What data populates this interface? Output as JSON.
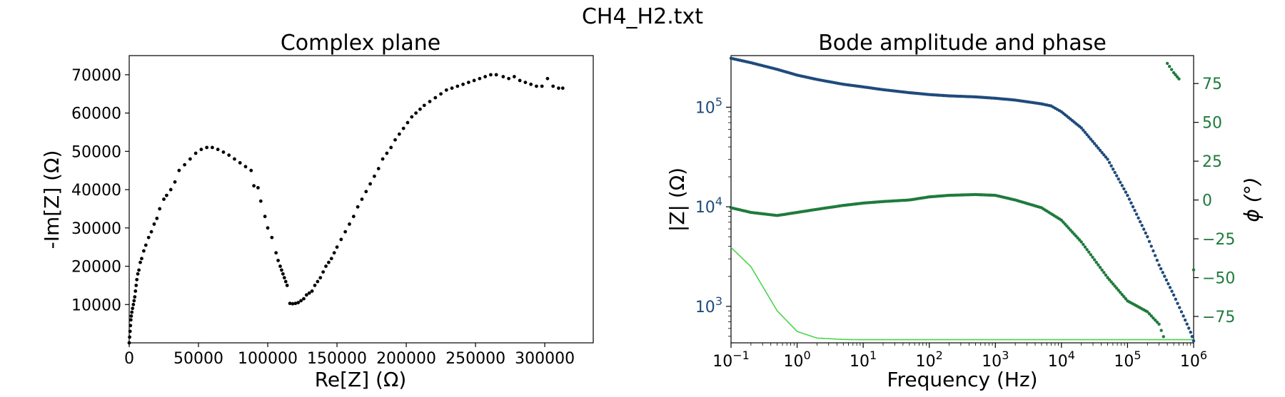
{
  "figure": {
    "title": "CH4_H2.txt"
  },
  "chart_data": [
    {
      "type": "scatter",
      "title": "Complex plane",
      "xlabel": "Re[Z] (Ω)",
      "ylabel": "-Im[Z] (Ω)",
      "xlim": [
        0,
        335000
      ],
      "ylim": [
        0,
        75000
      ],
      "xticks": [
        0,
        50000,
        100000,
        150000,
        200000,
        250000,
        300000
      ],
      "xtick_labels": [
        "0",
        "50000",
        "100000",
        "150000",
        "200000",
        "250000",
        "300000"
      ],
      "yticks": [
        10000,
        20000,
        30000,
        40000,
        50000,
        60000,
        70000
      ],
      "ytick_labels": [
        "10000",
        "20000",
        "30000",
        "40000",
        "50000",
        "60000",
        "70000"
      ],
      "grid": false,
      "marker_color": "#000000",
      "series": [
        {
          "points": [
            [
              0,
              0
            ],
            [
              300,
              1500
            ],
            [
              600,
              3000
            ],
            [
              900,
              4500
            ],
            [
              1200,
              6000
            ],
            [
              1500,
              7000
            ],
            [
              1900,
              8000
            ],
            [
              2400,
              9000
            ],
            [
              3000,
              10000
            ],
            [
              3500,
              11000
            ],
            [
              4000,
              12000
            ],
            [
              4500,
              13500
            ],
            [
              5000,
              15000
            ],
            [
              5500,
              16500
            ],
            [
              6200,
              18000
            ],
            [
              7000,
              19000
            ],
            [
              8000,
              21000
            ],
            [
              9000,
              22000
            ],
            [
              10500,
              24000
            ],
            [
              12000,
              25500
            ],
            [
              14000,
              27500
            ],
            [
              16000,
              29000
            ],
            [
              18000,
              31000
            ],
            [
              20000,
              32500
            ],
            [
              22000,
              35000
            ],
            [
              25000,
              37500
            ],
            [
              27000,
              38500
            ],
            [
              30000,
              40000
            ],
            [
              33000,
              42000
            ],
            [
              36000,
              45000
            ],
            [
              40000,
              46500
            ],
            [
              44000,
              48000
            ],
            [
              48000,
              49500
            ],
            [
              52000,
              50500
            ],
            [
              56000,
              51000
            ],
            [
              60000,
              51000
            ],
            [
              64000,
              50500
            ],
            [
              68000,
              49800
            ],
            [
              72000,
              49000
            ],
            [
              76000,
              48000
            ],
            [
              80000,
              47000
            ],
            [
              84000,
              46000
            ],
            [
              88000,
              45000
            ],
            [
              90000,
              41000
            ],
            [
              93000,
              40500
            ],
            [
              95000,
              37000
            ],
            [
              98000,
              33000
            ],
            [
              100000,
              30000
            ],
            [
              103000,
              27500
            ],
            [
              106000,
              23500
            ],
            [
              107500,
              21500
            ],
            [
              109000,
              20000
            ],
            [
              110000,
              19000
            ],
            [
              111000,
              18000
            ],
            [
              112000,
              17000
            ],
            [
              113000,
              16000
            ],
            [
              114000,
              15000
            ],
            [
              116000,
              10300
            ],
            [
              118000,
              10200
            ],
            [
              120000,
              10300
            ],
            [
              122000,
              10500
            ],
            [
              124000,
              11000
            ],
            [
              126000,
              11500
            ],
            [
              128000,
              12500
            ],
            [
              130000,
              13000
            ],
            [
              132000,
              13500
            ],
            [
              134000,
              15000
            ],
            [
              136000,
              16000
            ],
            [
              138000,
              17000
            ],
            [
              140000,
              18500
            ],
            [
              142000,
              20000
            ],
            [
              144000,
              21000
            ],
            [
              146000,
              22000
            ],
            [
              148000,
              23500
            ],
            [
              150000,
              25000
            ],
            [
              153000,
              27000
            ],
            [
              156000,
              29000
            ],
            [
              159000,
              31000
            ],
            [
              162000,
              33000
            ],
            [
              165000,
              35500
            ],
            [
              168000,
              37500
            ],
            [
              171000,
              39500
            ],
            [
              174000,
              41500
            ],
            [
              177000,
              43500
            ],
            [
              180000,
              45500
            ],
            [
              183000,
              48000
            ],
            [
              186000,
              49500
            ],
            [
              189000,
              51000
            ],
            [
              192000,
              53000
            ],
            [
              195000,
              54500
            ],
            [
              198000,
              56000
            ],
            [
              201000,
              57500
            ],
            [
              204000,
              59000
            ],
            [
              207000,
              60000
            ],
            [
              210000,
              61000
            ],
            [
              213000,
              62000
            ],
            [
              217000,
              63000
            ],
            [
              221000,
              64000
            ],
            [
              225000,
              65000
            ],
            [
              229000,
              66000
            ],
            [
              233000,
              66500
            ],
            [
              237000,
              67000
            ],
            [
              241000,
              67500
            ],
            [
              245000,
              68000
            ],
            [
              249000,
              68500
            ],
            [
              253000,
              69000
            ],
            [
              257000,
              69500
            ],
            [
              261000,
              70000
            ],
            [
              265000,
              70000
            ],
            [
              270000,
              69500
            ],
            [
              274000,
              69000
            ],
            [
              278000,
              69500
            ],
            [
              282000,
              68500
            ],
            [
              286000,
              68000
            ],
            [
              290000,
              67500
            ],
            [
              294000,
              67000
            ],
            [
              298000,
              67000
            ],
            [
              302000,
              69000
            ],
            [
              306000,
              67000
            ],
            [
              310000,
              66500
            ],
            [
              313000,
              66500
            ]
          ]
        }
      ]
    },
    {
      "type": "scatter",
      "title": "Bode amplitude and phase",
      "xlabel": "Frequency (Hz)",
      "ylabel": "|Z| (Ω)",
      "y2label": "ϕ (°)",
      "xscale": "log",
      "yscale": "log",
      "xlim": [
        0.1,
        1000000
      ],
      "ylim": [
        430,
        330000
      ],
      "y2lim": [
        -92,
        93
      ],
      "xtick_labels": [
        {
          "base": "10",
          "exp": "−1"
        },
        {
          "base": "10",
          "exp": "0"
        },
        {
          "base": "10",
          "exp": "1"
        },
        {
          "base": "10",
          "exp": "2"
        },
        {
          "base": "10",
          "exp": "3"
        },
        {
          "base": "10",
          "exp": "4"
        },
        {
          "base": "10",
          "exp": "5"
        },
        {
          "base": "10",
          "exp": "6"
        }
      ],
      "ytick_labels": [
        {
          "base": "10",
          "exp": "3"
        },
        {
          "base": "10",
          "exp": "4"
        },
        {
          "base": "10",
          "exp": "5"
        }
      ],
      "y2ticks": [
        75,
        50,
        25,
        0,
        -25,
        -50,
        -75
      ],
      "y2tick_labels": [
        "75",
        "50",
        "25",
        "0",
        "−25",
        "−50",
        "−75"
      ],
      "grid": false,
      "colors": {
        "magnitude": "#1f4a7c",
        "phase": "#1e7b3c",
        "fit": "#49d64a"
      },
      "series": [
        {
          "role": "magnitude",
          "axis": "left",
          "points": [
            [
              0.1,
              310000
            ],
            [
              0.2,
              280000
            ],
            [
              0.5,
              240000
            ],
            [
              1,
              210000
            ],
            [
              2,
              190000
            ],
            [
              5,
              170000
            ],
            [
              10,
              160000
            ],
            [
              20,
              150000
            ],
            [
              50,
              140000
            ],
            [
              100,
              134000
            ],
            [
              200,
              130000
            ],
            [
              500,
              127000
            ],
            [
              1000,
              123000
            ],
            [
              2000,
              118000
            ],
            [
              5000,
              108000
            ],
            [
              7000,
              103000
            ],
            [
              10000,
              90000
            ],
            [
              20000,
              62000
            ],
            [
              50000,
              30000
            ],
            [
              100000,
              13000
            ],
            [
              200000,
              5000
            ],
            [
              300000,
              2600
            ],
            [
              500000,
              1300
            ],
            [
              700000,
              800
            ],
            [
              900000,
              550
            ],
            [
              1000000,
              450
            ]
          ]
        },
        {
          "role": "phase",
          "axis": "right",
          "points": [
            [
              0.1,
              -5
            ],
            [
              0.2,
              -8
            ],
            [
              0.5,
              -10
            ],
            [
              1,
              -8
            ],
            [
              2,
              -6
            ],
            [
              5,
              -3.5
            ],
            [
              10,
              -2
            ],
            [
              20,
              -1
            ],
            [
              50,
              0
            ],
            [
              100,
              2
            ],
            [
              200,
              3
            ],
            [
              500,
              3.5
            ],
            [
              1000,
              3
            ],
            [
              2000,
              0
            ],
            [
              5000,
              -5
            ],
            [
              10000,
              -13
            ],
            [
              20000,
              -27
            ],
            [
              50000,
              -50
            ],
            [
              100000,
              -65
            ],
            [
              200000,
              -72
            ],
            [
              300000,
              -80
            ],
            [
              350000,
              -88
            ],
            [
              400000,
              88
            ],
            [
              500000,
              82
            ],
            [
              600000,
              78
            ],
            [
              1000000,
              -45
            ]
          ]
        },
        {
          "role": "fit",
          "axis": "left",
          "style": "line",
          "points": [
            [
              0.1,
              3900
            ],
            [
              0.2,
              2500
            ],
            [
              0.5,
              900
            ],
            [
              1,
              560
            ],
            [
              2,
              480
            ],
            [
              5,
              465
            ],
            [
              10,
              462
            ],
            [
              100,
              462
            ],
            [
              1000,
              462
            ],
            [
              1000000,
              462
            ]
          ]
        }
      ]
    }
  ]
}
